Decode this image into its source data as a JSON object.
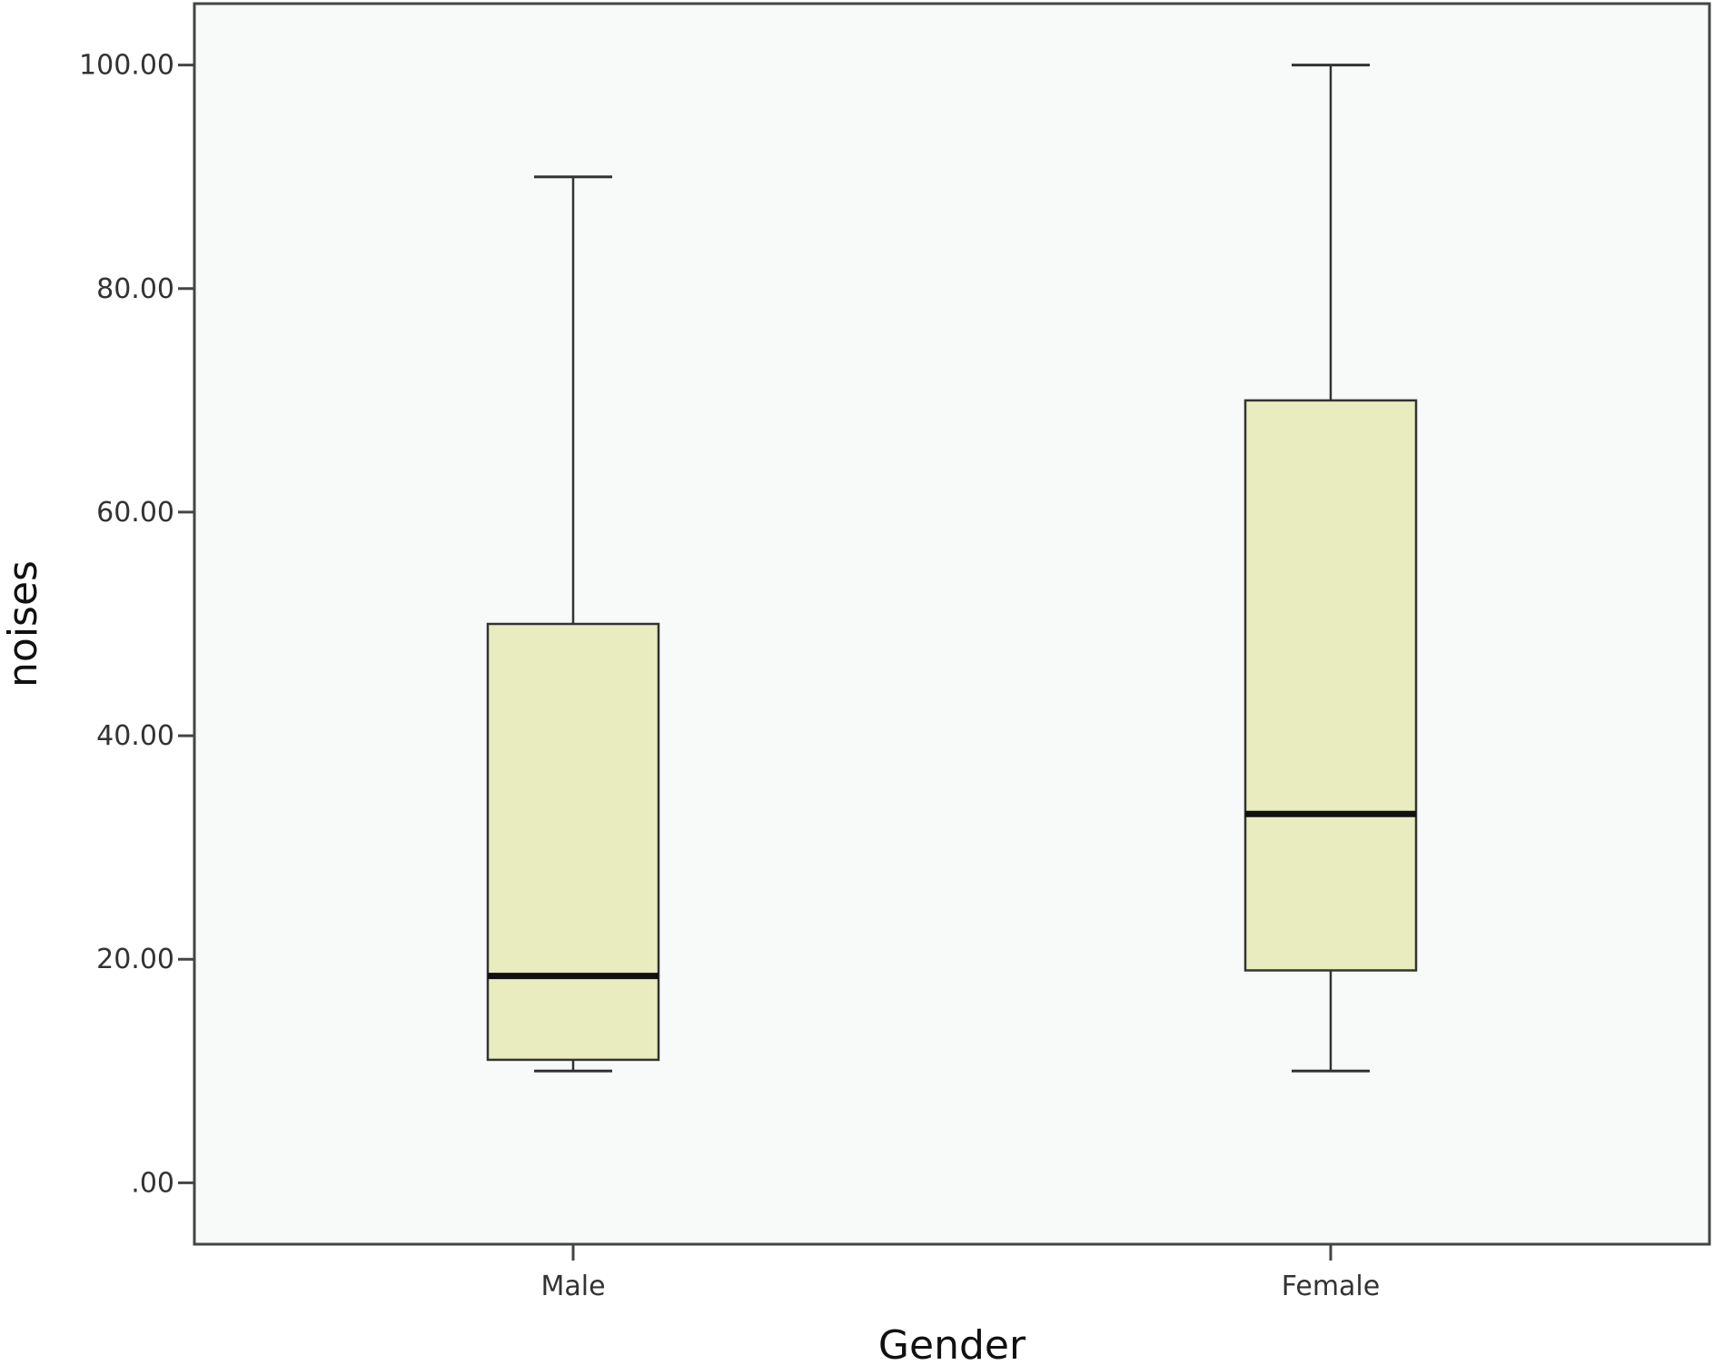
{
  "chart_data": {
    "type": "boxplot",
    "title": "",
    "xlabel": "Gender",
    "ylabel": "noises",
    "categories": [
      "Male",
      "Female"
    ],
    "boxes": [
      {
        "category": "Male",
        "whisker_low": 10,
        "q1": 11,
        "median": 18.5,
        "q3": 50,
        "whisker_high": 90
      },
      {
        "category": "Female",
        "whisker_low": 10,
        "q1": 19,
        "median": 33,
        "q3": 70,
        "whisker_high": 100
      }
    ],
    "ylim": [
      -5.5,
      105.5
    ],
    "yticks": [
      0,
      20,
      40,
      60,
      80,
      100
    ],
    "ytick_labels": [
      ".00",
      "20.00",
      "40.00",
      "60.00",
      "80.00",
      "100.00"
    ],
    "grid": false,
    "colors": {
      "plot_background": "#f8f9f9",
      "box_fill": "#e8ecbf",
      "box_stroke": "#333333",
      "median": "#111111",
      "axis": "#444444"
    }
  }
}
